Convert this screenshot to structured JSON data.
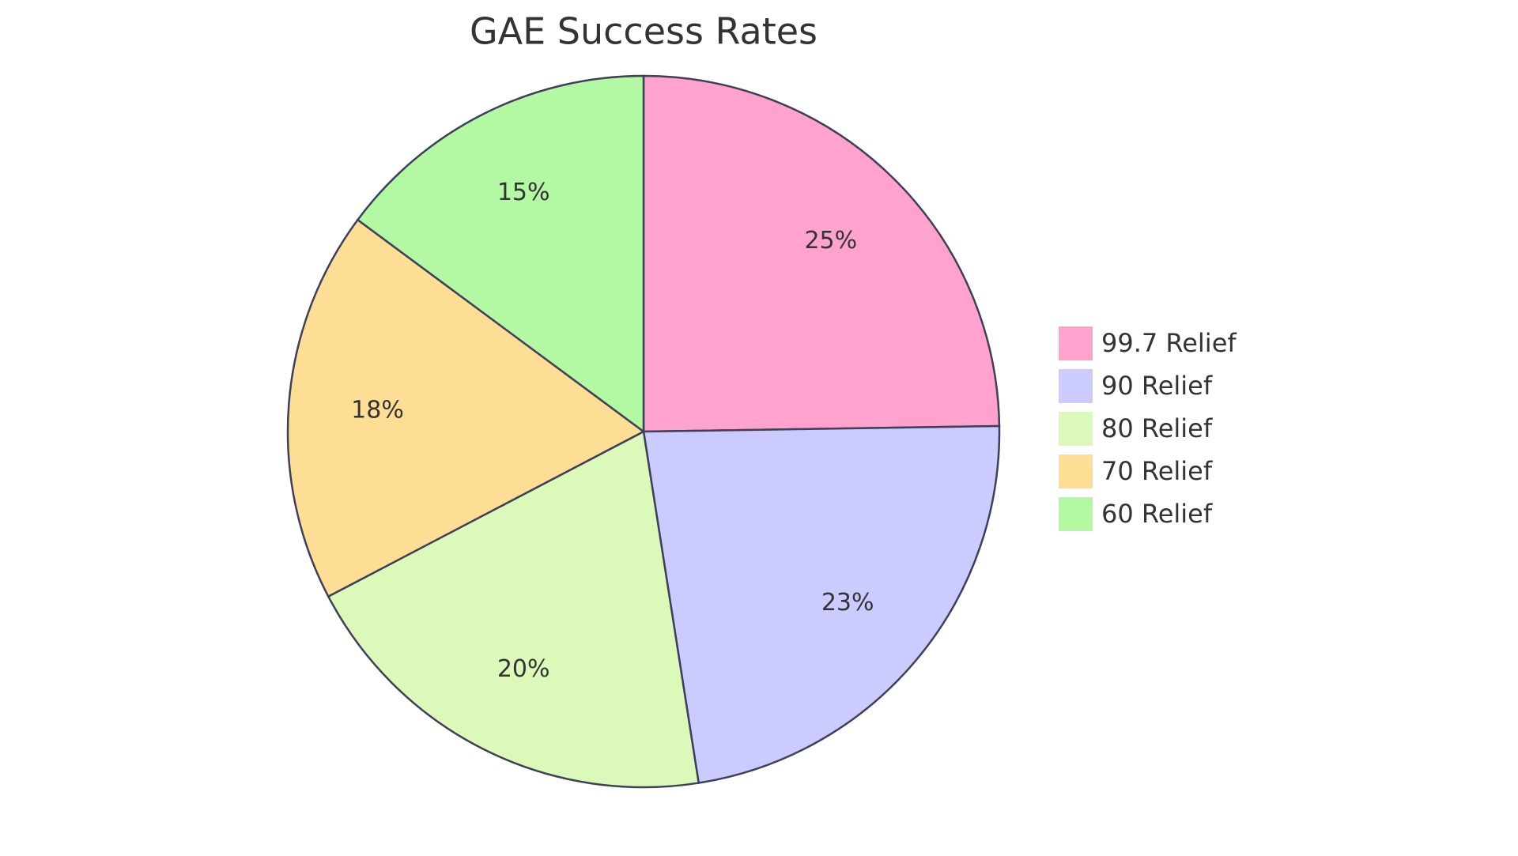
{
  "chart_data": {
    "type": "pie",
    "title": "GAE Success Rates",
    "categories": [
      "99.7 Relief",
      "90 Relief",
      "80 Relief",
      "70 Relief",
      "60 Relief"
    ],
    "values": [
      25,
      23,
      20,
      18,
      15
    ],
    "value_labels": [
      "25%",
      "23%",
      "20%",
      "18%",
      "15%"
    ],
    "colors": [
      "#ffa3ce",
      "#cbcbff",
      "#dbf9b9",
      "#fede95",
      "#b3f9a3"
    ],
    "legend": "right"
  }
}
